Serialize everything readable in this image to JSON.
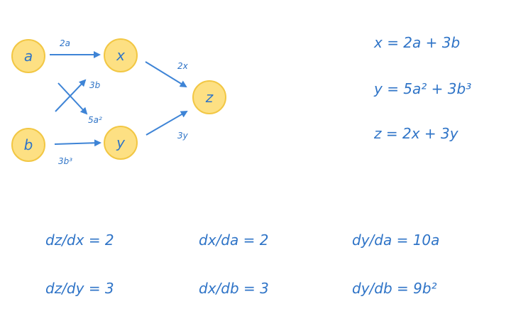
{
  "graph": {
    "nodes": {
      "a": "a",
      "b": "b",
      "x": "x",
      "y": "y",
      "z": "z"
    },
    "edge_labels": {
      "a_to_x": "2a",
      "b_to_x": "3b",
      "a_to_y": "5a²",
      "b_to_y": "3b³",
      "x_to_z": "2x",
      "y_to_z": "3y"
    }
  },
  "equations": {
    "x": "x = 2a + 3b",
    "y": "y = 5a² + 3b³",
    "z": "z = 2x + 3y"
  },
  "derivatives": {
    "dz_dx": "dz/dx = 2",
    "dz_dy": "dz/dy = 3",
    "dx_da": "dx/da = 2",
    "dx_db": "dx/db = 3",
    "dy_da": "dy/da = 10a",
    "dy_db": "dy/db = 9b²"
  },
  "colors": {
    "node_fill": "#fde083",
    "node_stroke": "#f2c744",
    "ink": "#2f74c7"
  }
}
